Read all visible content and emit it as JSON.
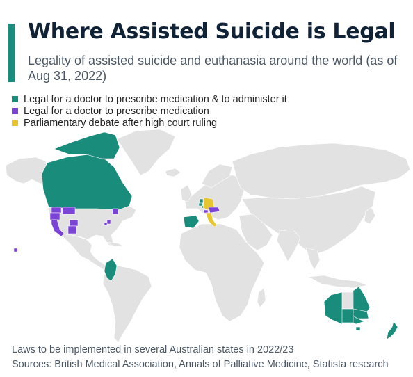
{
  "header": {
    "title": "Where Assisted Suicide is Legal",
    "subtitle": "Legality of assisted suicide and euthanasia around the world (as of Aug 31, 2022)"
  },
  "legend": [
    {
      "label": "Legal for a doctor to prescribe medication & to administer it",
      "color": "#1a8c7b"
    },
    {
      "label": "Legal for a doctor to prescribe medication",
      "color": "#7b43d6"
    },
    {
      "label": "Parliamentary debate after high court ruling",
      "color": "#e6c52e"
    }
  ],
  "colors": {
    "accent": "#1a8c7b",
    "land": "#e2e2e2",
    "prescribe": "#7b43d6",
    "debate": "#e6c52e"
  },
  "regions": {
    "administer": [
      "Canada",
      "Colombia",
      "Spain",
      "Belgium",
      "Netherlands",
      "Luxembourg",
      "Australia",
      "New Zealand"
    ],
    "prescribe": [
      "Switzerland",
      "Austria",
      "US states (west coast)",
      "US states (northeast)",
      "Hawaii"
    ],
    "debate": [
      "Italy",
      "Germany"
    ]
  },
  "footer": {
    "note": "Laws to be implemented in several Australian states in 2022/23",
    "sources": "Sources: British Medical Association, Annals of Palliative Medicine, Statista research"
  }
}
